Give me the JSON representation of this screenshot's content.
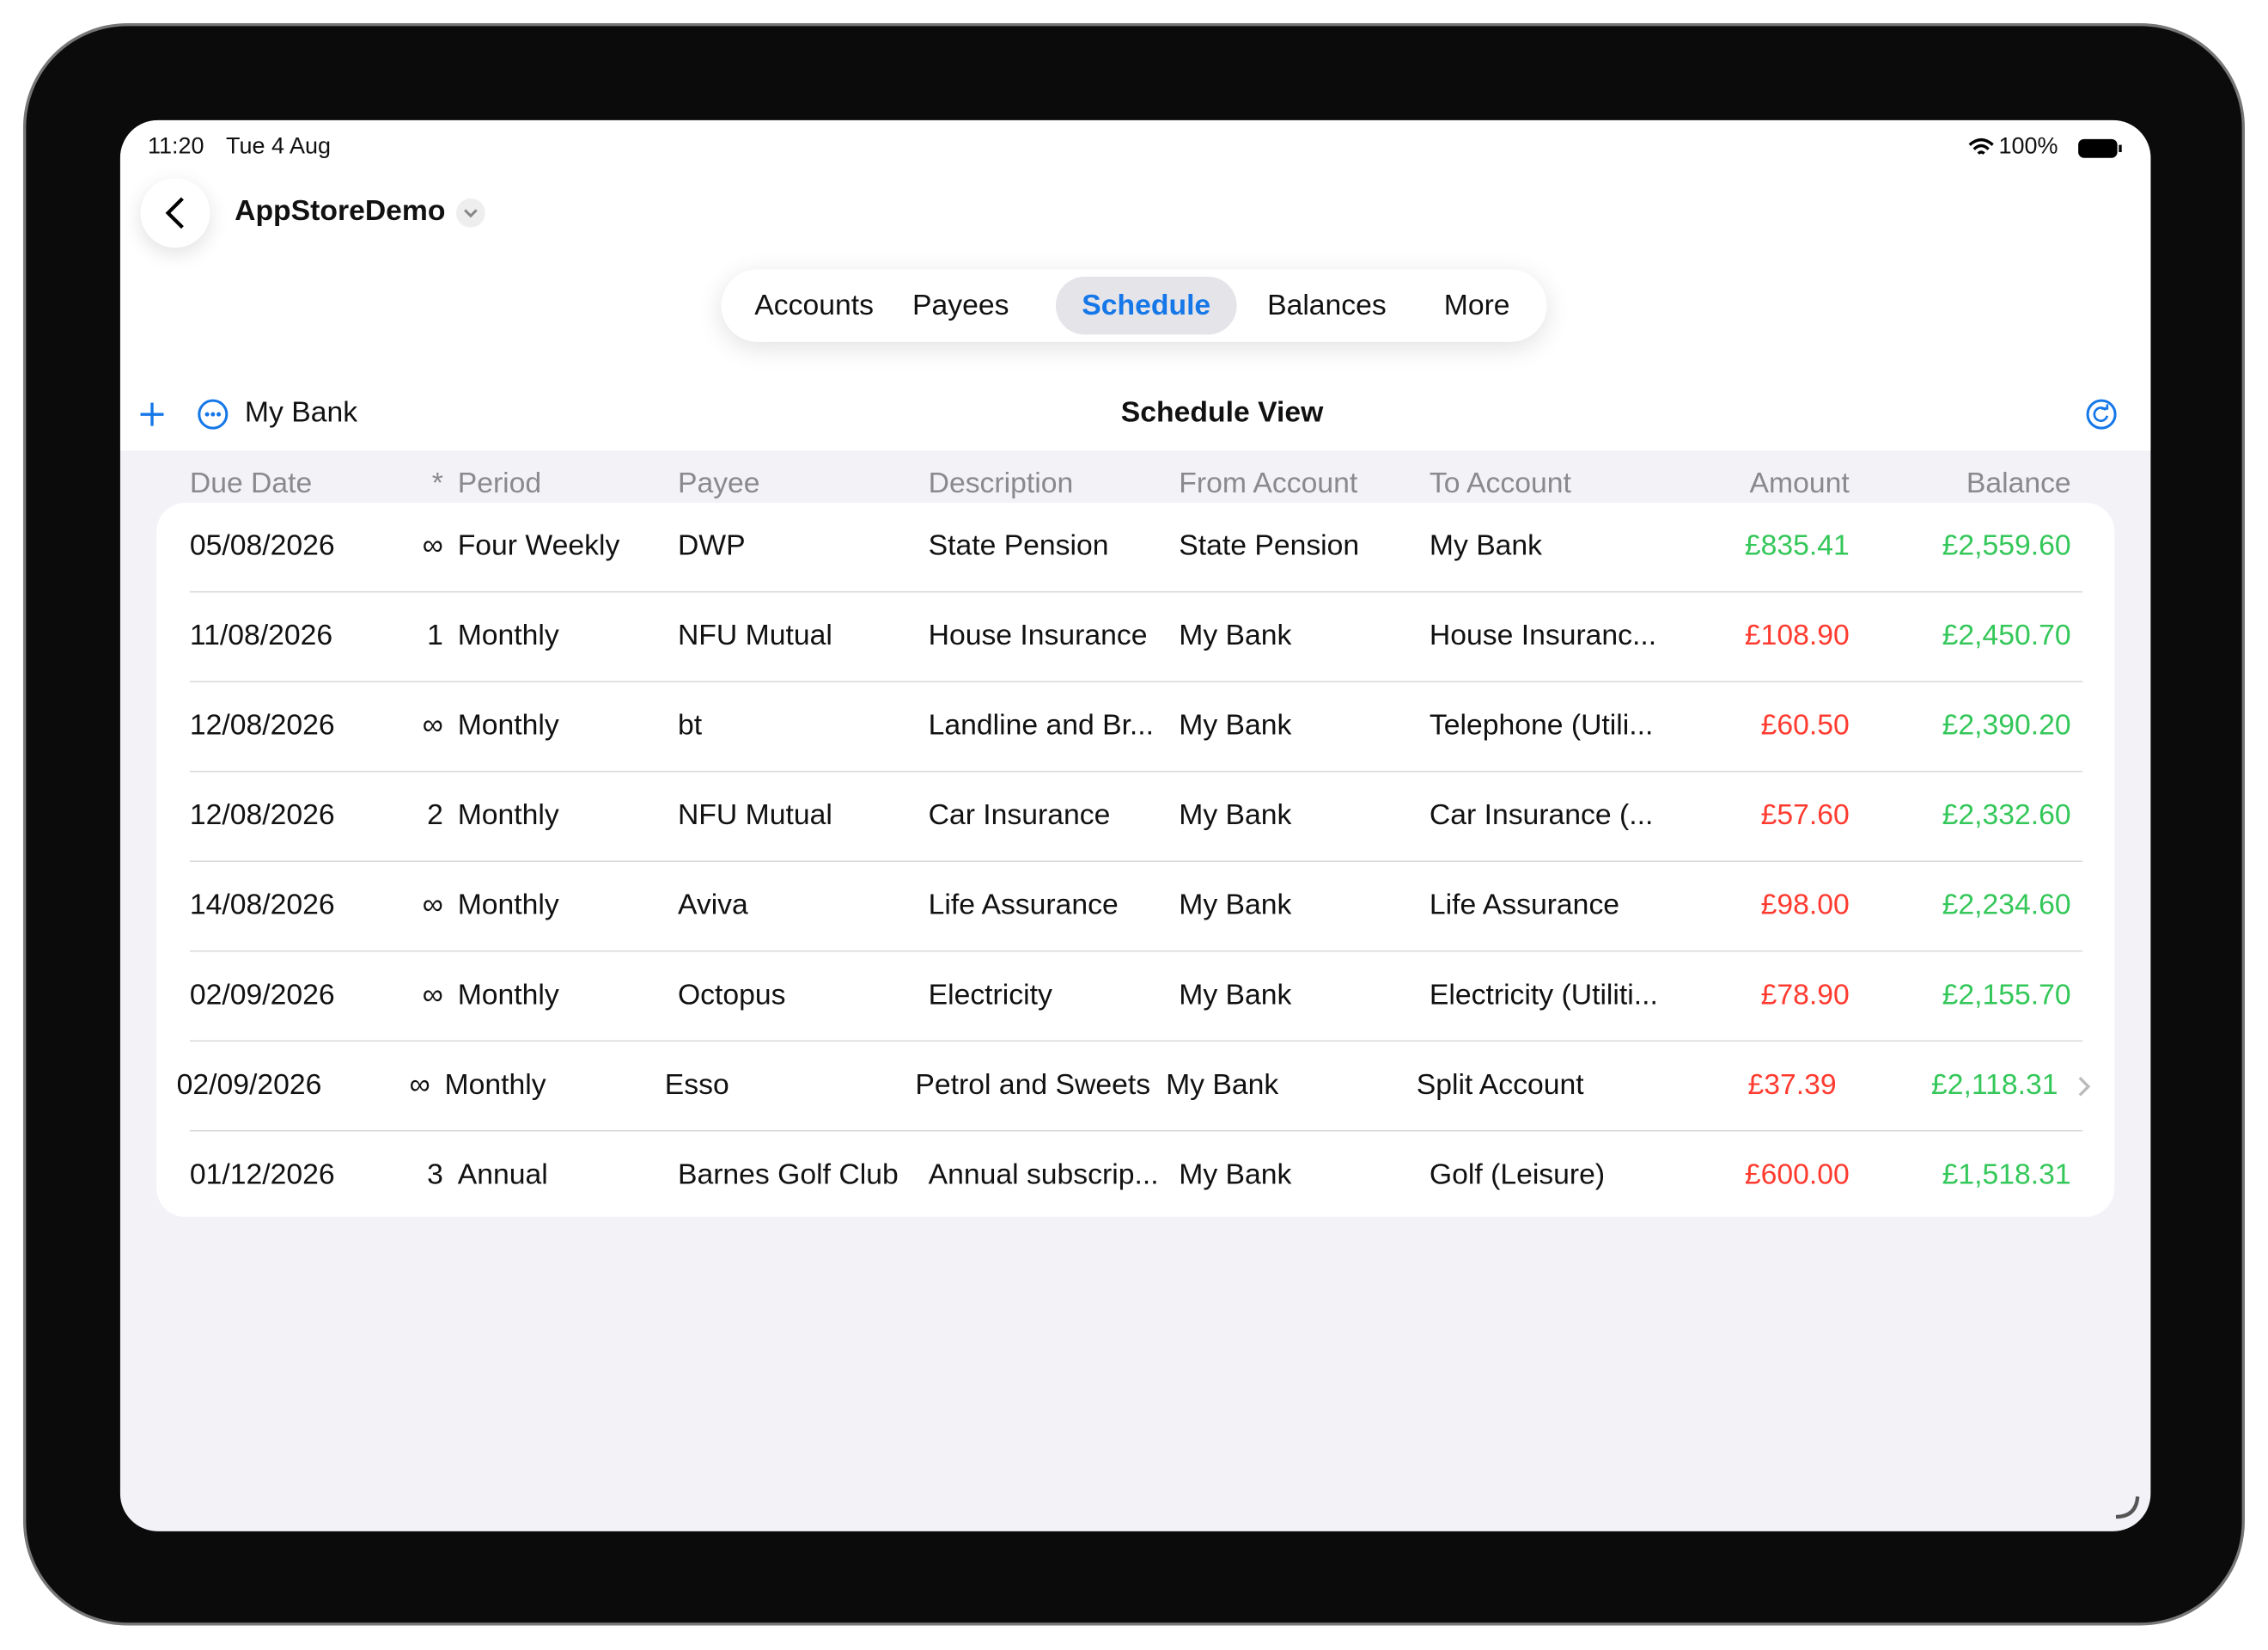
{
  "status_bar": {
    "time": "11:20",
    "date": "Tue 4 Aug",
    "battery": "100%"
  },
  "header": {
    "title": "AppStoreDemo"
  },
  "tabs": [
    "Accounts",
    "Payees",
    "Schedule",
    "Balances",
    "More"
  ],
  "selected_tab": 2,
  "toolbar": {
    "account": "My Bank",
    "title": "Schedule View"
  },
  "table": {
    "columns": [
      "Due Date",
      "*",
      "Period",
      "Payee",
      "Description",
      "From Account",
      "To Account",
      "Amount",
      "Balance"
    ],
    "rows": [
      [
        "05/08/2026",
        "∞",
        "Four Weekly",
        "DWP",
        "State Pension",
        "State Pension",
        "My Bank",
        "£835.41",
        "£2,559.60"
      ],
      [
        "11/08/2026",
        "1",
        "Monthly",
        "NFU Mutual",
        "House Insurance",
        "My Bank",
        "House Insuranc...",
        "£108.90",
        "£2,450.70"
      ],
      [
        "12/08/2026",
        "∞",
        "Monthly",
        "bt",
        "Landline and Br...",
        "My Bank",
        "Telephone (Utili...",
        "£60.50",
        "£2,390.20"
      ],
      [
        "12/08/2026",
        "2",
        "Monthly",
        "NFU Mutual",
        "Car Insurance",
        "My Bank",
        "Car Insurance (...",
        "£57.60",
        "£2,332.60"
      ],
      [
        "14/08/2026",
        "∞",
        "Monthly",
        "Aviva",
        "Life Assurance",
        "My Bank",
        "Life Assurance",
        "£98.00",
        "£2,234.60"
      ],
      [
        "02/09/2026",
        "∞",
        "Monthly",
        "Octopus",
        "Electricity",
        "My Bank",
        "Electricity (Utiliti...",
        "£78.90",
        "£2,155.70"
      ],
      [
        "02/09/2026",
        "∞",
        "Monthly",
        "Esso",
        "Petrol and Sweets",
        "My Bank",
        "Split Account",
        "£37.39",
        "£2,118.31"
      ],
      [
        "01/12/2026",
        "3",
        "Annual",
        "Barnes Golf Club",
        "Annual subscrip...",
        "My Bank",
        "Golf (Leisure)",
        "£600.00",
        "£1,518.31"
      ]
    ]
  }
}
